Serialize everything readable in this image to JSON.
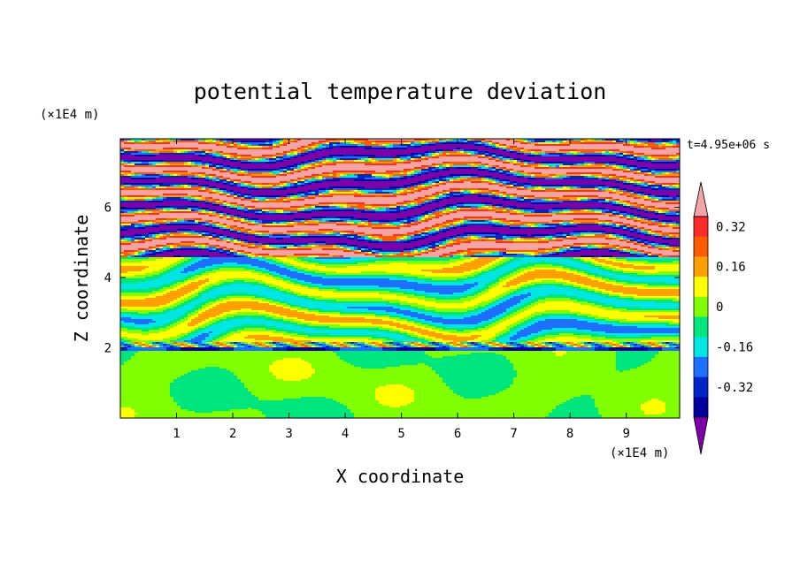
{
  "chart_data": {
    "type": "heatmap",
    "title": "potential temperature deviation",
    "xlabel": "X coordinate",
    "ylabel": "Z coordinate",
    "x_unit": "(×1E4 m)",
    "y_unit": "(×1E4 m)",
    "time_label": "t=4.95e+06 s",
    "xlim": [
      0,
      9.95
    ],
    "ylim": [
      0,
      7.95
    ],
    "x_ticks": [
      "1",
      "2",
      "3",
      "4",
      "5",
      "6",
      "7",
      "8",
      "9"
    ],
    "y_ticks": [
      "2",
      "4",
      "6"
    ],
    "colorbar": {
      "levels": [
        -0.4,
        -0.32,
        -0.24,
        -0.16,
        -0.08,
        0,
        0.08,
        0.16,
        0.24,
        0.32,
        0.4
      ],
      "tick_labels": [
        "0.32",
        "0.16",
        "0",
        "-0.16",
        "-0.32"
      ],
      "tick_values": [
        0.32,
        0.16,
        0,
        -0.16,
        -0.32
      ],
      "colors": [
        "#7d00a8",
        "#0000a0",
        "#0026c8",
        "#1f6fff",
        "#00e6e6",
        "#00e67f",
        "#80ff00",
        "#ffff00",
        "#ffa000",
        "#ff5a00",
        "#ff2a2a",
        "#f4a4a4"
      ],
      "extend": "both",
      "placement": "right"
    },
    "layers": [
      {
        "z": [
          0.0,
          1.9
        ],
        "pattern": "mixed-layer",
        "note": "green/light-green turbulence"
      },
      {
        "z": [
          1.9,
          2.15
        ],
        "pattern": "inversion",
        "note": "thin blue/red strip"
      },
      {
        "z": [
          2.15,
          4.6
        ],
        "pattern": "wavy-bands"
      },
      {
        "z": [
          4.6,
          7.95
        ],
        "pattern": "stratified-bands",
        "note": "alternating purple/pink bands"
      }
    ]
  }
}
